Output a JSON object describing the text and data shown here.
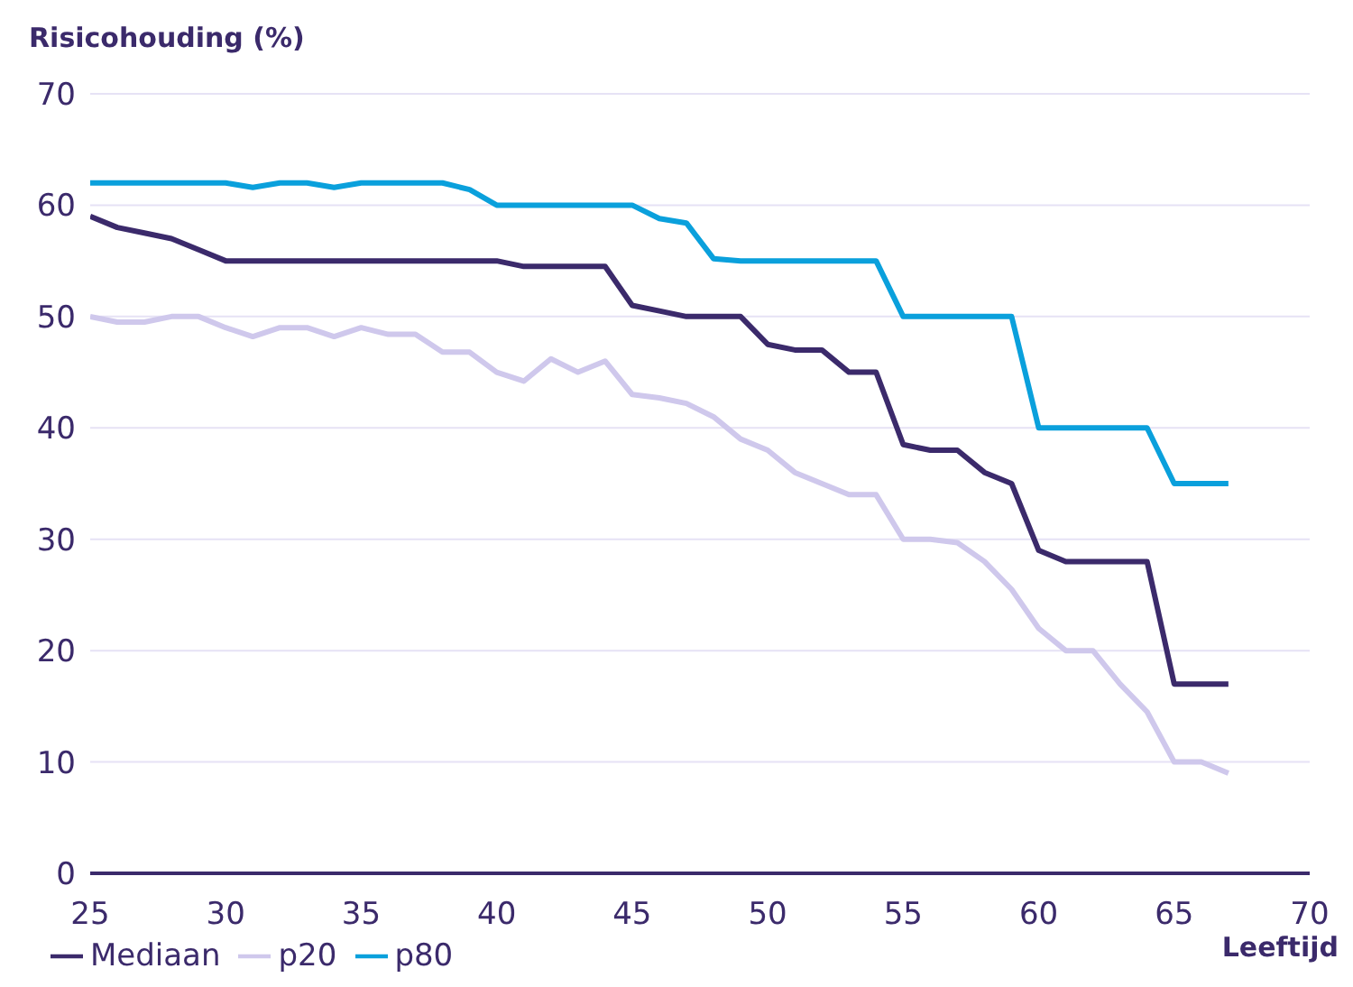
{
  "chart_data": {
    "type": "line",
    "ylabel": "Risicohouding (%)",
    "xlabel": "Leeftijd",
    "x": [
      25,
      26,
      27,
      28,
      29,
      30,
      31,
      32,
      33,
      34,
      35,
      36,
      37,
      38,
      39,
      40,
      41,
      42,
      43,
      44,
      45,
      46,
      47,
      48,
      49,
      50,
      51,
      52,
      53,
      54,
      55,
      56,
      57,
      58,
      59,
      60,
      61,
      62,
      63,
      64,
      65,
      66,
      67
    ],
    "series": [
      {
        "name": "Mediaan",
        "color": "#3b2a6b",
        "values": [
          59,
          58,
          57.5,
          57,
          56,
          55,
          55,
          55,
          55,
          55,
          55,
          55,
          55,
          55,
          55,
          55,
          54.5,
          54.5,
          54.5,
          54.5,
          51,
          50.5,
          50,
          50,
          50,
          47.5,
          47,
          47,
          45,
          45,
          38.5,
          38,
          38,
          36,
          35,
          29,
          28,
          28,
          28,
          28,
          17,
          17,
          17
        ]
      },
      {
        "name": "p20",
        "color": "#cfc8ec",
        "values": [
          50,
          49.5,
          49.5,
          50,
          50,
          49,
          48.2,
          49,
          49,
          48.2,
          49,
          48.4,
          48.4,
          46.8,
          46.8,
          45,
          44.2,
          46.2,
          45,
          46,
          43,
          42.7,
          42.2,
          41,
          39,
          38,
          36,
          35,
          34,
          34,
          30,
          30,
          29.7,
          28,
          25.5,
          22,
          20,
          20,
          17,
          14.5,
          10,
          10,
          9
        ]
      },
      {
        "name": "p80",
        "color": "#0aa0dc",
        "values": [
          62,
          62,
          62,
          62,
          62,
          62,
          61.6,
          62,
          62,
          61.6,
          62,
          62,
          62,
          62,
          61.4,
          60,
          60,
          60,
          60,
          60,
          60,
          58.8,
          58.4,
          55.2,
          55,
          55,
          55,
          55,
          55,
          55,
          50,
          50,
          50,
          50,
          50,
          40,
          40,
          40,
          40,
          40,
          35,
          35,
          35
        ]
      }
    ],
    "xlim": [
      25,
      70
    ],
    "xticks": [
      25,
      30,
      35,
      40,
      45,
      50,
      55,
      60,
      65,
      70
    ],
    "ylim": [
      0,
      70
    ],
    "yticks": [
      0,
      10,
      20,
      30,
      40,
      50,
      60,
      70
    ],
    "grid": "y",
    "legend": "bottom left",
    "marker": "none",
    "line_style": "solid"
  }
}
